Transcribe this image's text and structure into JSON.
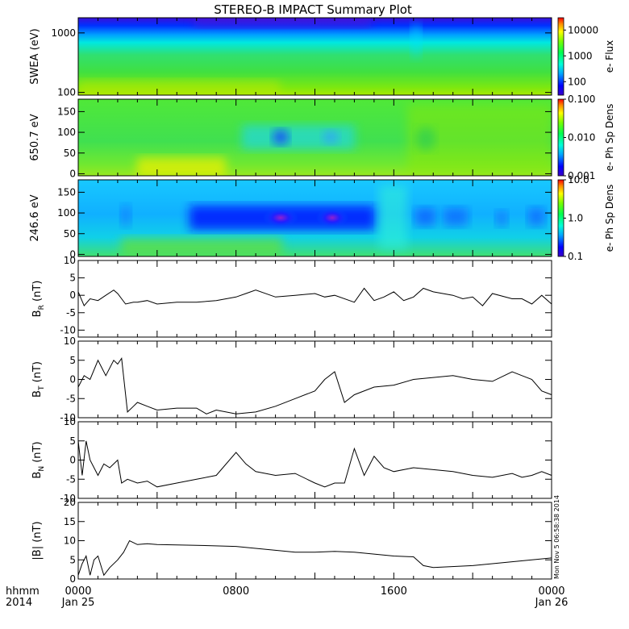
{
  "title": "STEREO-B IMPACT Summary Plot",
  "time_axis": {
    "row1_labels": [
      "0000",
      "0800",
      "1600",
      "0000"
    ],
    "row2_labels": [
      "Jan 25",
      "",
      "",
      "Jan 26"
    ],
    "row1_prefix": "hhmm",
    "row2_prefix": "2014",
    "tick_hours": [
      0,
      8,
      16,
      24
    ],
    "range_hours": [
      0,
      24
    ]
  },
  "footer_stamp": "Mon Nov  5 06:58:38 2014",
  "chart_data": [
    {
      "type": "heatmap",
      "ylabel": "SWEA (eV)",
      "y_scale": "log",
      "ylim": [
        90,
        1800
      ],
      "y_ticks": [
        {
          "value": 100,
          "label": "100"
        },
        {
          "value": 1000,
          "label": "1000"
        }
      ],
      "colorbar": {
        "label": "e- Flux",
        "scale": "log",
        "range": [
          30,
          30000
        ],
        "ticks": [
          {
            "value": 100,
            "label": "100"
          },
          {
            "value": 1000,
            "label": "1000"
          },
          {
            "value": 10000,
            "label": "10000"
          }
        ]
      }
    },
    {
      "type": "heatmap",
      "ylabel": "650.7 eV",
      "y_scale": "linear",
      "ylim": [
        -5,
        180
      ],
      "y_ticks": [
        {
          "value": 0,
          "label": "0"
        },
        {
          "value": 50,
          "label": "50"
        },
        {
          "value": 100,
          "label": "100"
        },
        {
          "value": 150,
          "label": "150"
        }
      ],
      "colorbar": {
        "label": "e- Ph Sp Dens",
        "scale": "log",
        "range": [
          0.001,
          0.1
        ],
        "ticks": [
          {
            "value": 0.001,
            "label": "0.001"
          },
          {
            "value": 0.01,
            "label": "0.010"
          },
          {
            "value": 0.1,
            "label": "0.100"
          }
        ]
      }
    },
    {
      "type": "heatmap",
      "ylabel": "246.6 eV",
      "y_scale": "linear",
      "ylim": [
        -5,
        180
      ],
      "y_ticks": [
        {
          "value": 0,
          "label": "0"
        },
        {
          "value": 50,
          "label": "50"
        },
        {
          "value": 100,
          "label": "100"
        },
        {
          "value": 150,
          "label": "150"
        }
      ],
      "colorbar": {
        "label": "e- Ph Sp Dens",
        "scale": "log",
        "range": [
          0.1,
          10
        ],
        "ticks": [
          {
            "value": 0.1,
            "label": "0.1"
          },
          {
            "value": 1,
            "label": "1.0"
          },
          {
            "value": 10,
            "label": "10.0"
          }
        ]
      }
    },
    {
      "type": "line",
      "ylabel_main": "B",
      "ylabel_sub": "R",
      "ylabel_unit": " (nT)",
      "ylim": [
        -12,
        10
      ],
      "y_ticks": [
        {
          "value": -10,
          "label": "-10"
        },
        {
          "value": -5,
          "label": "-5"
        },
        {
          "value": 0,
          "label": "0"
        },
        {
          "value": 5,
          "label": "5"
        },
        {
          "value": 10,
          "label": "10"
        }
      ],
      "x": [
        0,
        0.3,
        0.6,
        1,
        1.4,
        1.8,
        2,
        2.4,
        2.8,
        3,
        3.5,
        4,
        5,
        6,
        7,
        8,
        8.5,
        9,
        10,
        11,
        12,
        12.5,
        13,
        14,
        14.5,
        15,
        15.5,
        16,
        16.5,
        17,
        17.5,
        18,
        19,
        19.5,
        20,
        20.5,
        21,
        22,
        22.5,
        23,
        23.5,
        24
      ],
      "y": [
        1,
        -3,
        -1,
        -1.5,
        0,
        1.5,
        0.5,
        -2.5,
        -2,
        -2,
        -1.5,
        -2.5,
        -2,
        -2,
        -1.5,
        -0.5,
        0.5,
        1.5,
        -0.5,
        0,
        0.5,
        -0.5,
        0,
        -2,
        2,
        -1.5,
        -0.5,
        1,
        -1.5,
        -0.5,
        2,
        1,
        0,
        -1,
        -0.5,
        -3,
        0.5,
        -1,
        -1,
        -2.5,
        0,
        -2.5
      ]
    },
    {
      "type": "line",
      "ylabel_main": "B",
      "ylabel_sub": "T",
      "ylabel_unit": " (nT)",
      "ylim": [
        -10,
        10
      ],
      "y_ticks": [
        {
          "value": -10,
          "label": "-10"
        },
        {
          "value": -5,
          "label": "-5"
        },
        {
          "value": 0,
          "label": "0"
        },
        {
          "value": 5,
          "label": "5"
        },
        {
          "value": 10,
          "label": "10"
        }
      ],
      "x": [
        0,
        0.3,
        0.6,
        1,
        1.4,
        1.8,
        2,
        2.2,
        2.5,
        2.8,
        3,
        3.5,
        4,
        5,
        6,
        6.5,
        7,
        8,
        9,
        10,
        11,
        12,
        12.5,
        13,
        13.5,
        14,
        15,
        16,
        17,
        18,
        19,
        20,
        21,
        22,
        22.5,
        23,
        23.5,
        24
      ],
      "y": [
        -2,
        1,
        0,
        5,
        1,
        5,
        4,
        5.5,
        -8.5,
        -7,
        -6,
        -7,
        -8,
        -7.5,
        -7.5,
        -9,
        -8,
        -9,
        -8.5,
        -7,
        -5,
        -3,
        0,
        2,
        -6,
        -4,
        -2,
        -1.5,
        0,
        0.5,
        1,
        0,
        -0.5,
        2,
        1,
        0,
        -3,
        -4
      ]
    },
    {
      "type": "line",
      "ylabel_main": "B",
      "ylabel_sub": "N",
      "ylabel_unit": " (nT)",
      "ylim": [
        -10,
        10
      ],
      "y_ticks": [
        {
          "value": -10,
          "label": "-10"
        },
        {
          "value": -5,
          "label": "-5"
        },
        {
          "value": 0,
          "label": "0"
        },
        {
          "value": 5,
          "label": "5"
        },
        {
          "value": 10,
          "label": "10"
        }
      ],
      "x": [
        0,
        0.2,
        0.4,
        0.6,
        0.8,
        1,
        1.3,
        1.6,
        2,
        2.2,
        2.5,
        3,
        3.5,
        4,
        5,
        6,
        7,
        8,
        8.5,
        9,
        10,
        11,
        12,
        12.5,
        13,
        13.5,
        14,
        14.5,
        15,
        15.5,
        16,
        17,
        18,
        19,
        20,
        21,
        22,
        22.5,
        23,
        23.5,
        24
      ],
      "y": [
        5,
        -4,
        5,
        0,
        -2,
        -4,
        -1,
        -2,
        0,
        -6,
        -5,
        -6,
        -5.5,
        -7,
        -6,
        -5,
        -4,
        2,
        -1,
        -3,
        -4,
        -3.5,
        -6,
        -7,
        -6,
        -6,
        3,
        -4,
        1,
        -2,
        -3,
        -2,
        -2.5,
        -3,
        -4,
        -4.5,
        -3.5,
        -4.5,
        -4,
        -3,
        -4
      ]
    },
    {
      "type": "line",
      "ylabel_main": "|B|",
      "ylabel_sub": "",
      "ylabel_unit": " (nT)",
      "ylim": [
        0,
        20
      ],
      "y_ticks": [
        {
          "value": 0,
          "label": "0"
        },
        {
          "value": 5,
          "label": "5"
        },
        {
          "value": 10,
          "label": "10"
        },
        {
          "value": 15,
          "label": "15"
        },
        {
          "value": 20,
          "label": "20"
        }
      ],
      "x": [
        0,
        0.2,
        0.4,
        0.6,
        0.8,
        1,
        1.3,
        1.6,
        2,
        2.3,
        2.6,
        3,
        3.5,
        4,
        6,
        8,
        9,
        10,
        11,
        12,
        13,
        14,
        15,
        16,
        17,
        17.5,
        18,
        20,
        22,
        24
      ],
      "y": [
        1,
        4,
        6,
        1,
        5,
        6,
        1,
        3,
        5,
        7,
        10,
        9,
        9.2,
        9,
        8.8,
        8.5,
        8,
        7.5,
        7,
        7,
        7.2,
        7,
        6.5,
        6,
        5.8,
        3.5,
        3,
        3.5,
        4.5,
        5.5
      ]
    }
  ]
}
